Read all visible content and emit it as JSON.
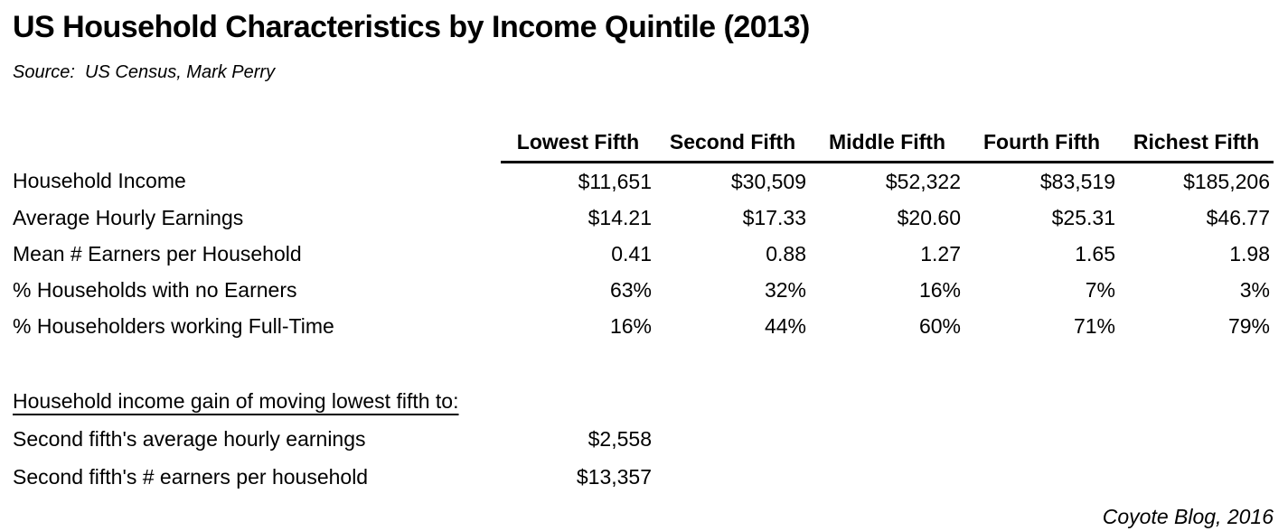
{
  "page": {
    "title": "US Household Characteristics by Income Quintile (2013)",
    "source_line": "Source:  US Census, Mark Perry",
    "attribution": "Coyote Blog, 2016"
  },
  "chart_data": {
    "type": "table",
    "title": "US Household Characteristics by Income Quintile (2013)",
    "source": "US Census, Mark Perry",
    "columns": [
      "Lowest Fifth",
      "Second Fifth",
      "Middle Fifth",
      "Fourth Fifth",
      "Richest Fifth"
    ],
    "rows": [
      {
        "label": "Household Income",
        "values": [
          "$11,651",
          "$30,509",
          "$52,322",
          "$83,519",
          "$185,206"
        ]
      },
      {
        "label": "Average Hourly Earnings",
        "values": [
          "$14.21",
          "$17.33",
          "$20.60",
          "$25.31",
          "$46.77"
        ]
      },
      {
        "label": "Mean # Earners per Household",
        "values": [
          "0.41",
          "0.88",
          "1.27",
          "1.65",
          "1.98"
        ]
      },
      {
        "label": "% Households with no Earners",
        "values": [
          "63%",
          "32%",
          "16%",
          "7%",
          "3%"
        ]
      },
      {
        "label": "% Householders working Full-Time",
        "values": [
          "16%",
          "44%",
          "60%",
          "71%",
          "79%"
        ]
      }
    ],
    "secondary_section": {
      "header": "Household income gain of moving lowest fifth to:",
      "rows": [
        {
          "label": "Second fifth's average hourly earnings",
          "value": "$2,558"
        },
        {
          "label": "Second fifth's # earners per household",
          "value": "$13,357"
        }
      ]
    },
    "attribution": "Coyote Blog, 2016",
    "layout": {
      "text_color": "#000000",
      "background": "#ffffff",
      "header_rule": "solid-black"
    }
  }
}
